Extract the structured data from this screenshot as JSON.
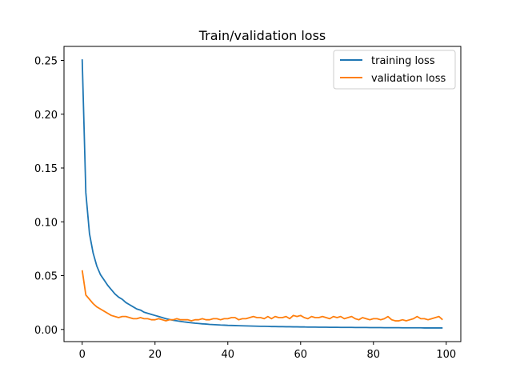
{
  "chart_data": {
    "type": "line",
    "title": "Train/validation loss",
    "xlabel": "",
    "ylabel": "",
    "xlim": [
      -5,
      104
    ],
    "ylim": [
      -0.0113,
      0.263
    ],
    "xticks": [
      0,
      20,
      40,
      60,
      80,
      100
    ],
    "xtick_labels": [
      "0",
      "20",
      "40",
      "60",
      "80",
      "100"
    ],
    "yticks": [
      0.0,
      0.05,
      0.1,
      0.15,
      0.2,
      0.25
    ],
    "ytick_labels": [
      "0.00",
      "0.05",
      "0.10",
      "0.15",
      "0.20",
      "0.25"
    ],
    "grid": false,
    "legend_position": "top-right",
    "series": [
      {
        "name": "training loss",
        "color": "#1f77b4",
        "x": [
          0,
          1,
          2,
          3,
          4,
          5,
          6,
          7,
          8,
          9,
          10,
          11,
          12,
          13,
          14,
          15,
          16,
          17,
          18,
          19,
          20,
          21,
          22,
          23,
          24,
          25,
          26,
          27,
          28,
          29,
          30,
          31,
          32,
          33,
          34,
          35,
          36,
          37,
          38,
          39,
          40,
          41,
          42,
          43,
          44,
          45,
          46,
          47,
          48,
          49,
          50,
          51,
          52,
          53,
          54,
          55,
          56,
          57,
          58,
          59,
          60,
          61,
          62,
          63,
          64,
          65,
          66,
          67,
          68,
          69,
          70,
          71,
          72,
          73,
          74,
          75,
          76,
          77,
          78,
          79,
          80,
          81,
          82,
          83,
          84,
          85,
          86,
          87,
          88,
          89,
          90,
          91,
          92,
          93,
          94,
          95,
          96,
          97,
          98,
          99
        ],
        "y": [
          0.251,
          0.127,
          0.089,
          0.071,
          0.059,
          0.051,
          0.046,
          0.041,
          0.037,
          0.033,
          0.03,
          0.028,
          0.025,
          0.023,
          0.021,
          0.019,
          0.018,
          0.016,
          0.015,
          0.014,
          0.013,
          0.012,
          0.011,
          0.01,
          0.0092,
          0.0085,
          0.008,
          0.0075,
          0.007,
          0.0066,
          0.0062,
          0.0058,
          0.0055,
          0.0052,
          0.005,
          0.0047,
          0.0045,
          0.0043,
          0.0041,
          0.004,
          0.0038,
          0.0037,
          0.0036,
          0.0035,
          0.0034,
          0.0033,
          0.0032,
          0.0031,
          0.003,
          0.0029,
          0.0029,
          0.0028,
          0.0027,
          0.0027,
          0.0026,
          0.0026,
          0.0025,
          0.0025,
          0.0024,
          0.0024,
          0.0023,
          0.0023,
          0.0022,
          0.0022,
          0.0022,
          0.0021,
          0.0021,
          0.0021,
          0.002,
          0.002,
          0.002,
          0.0019,
          0.0019,
          0.0019,
          0.0019,
          0.0018,
          0.0018,
          0.0018,
          0.0018,
          0.0017,
          0.0017,
          0.0017,
          0.0017,
          0.0016,
          0.0016,
          0.0016,
          0.0016,
          0.0016,
          0.0015,
          0.0015,
          0.0015,
          0.0015,
          0.0015,
          0.0015,
          0.0014,
          0.0014,
          0.0014,
          0.0014,
          0.0014,
          0.0014
        ]
      },
      {
        "name": "validation loss",
        "color": "#ff7f0e",
        "x": [
          0,
          1,
          2,
          3,
          4,
          5,
          6,
          7,
          8,
          9,
          10,
          11,
          12,
          13,
          14,
          15,
          16,
          17,
          18,
          19,
          20,
          21,
          22,
          23,
          24,
          25,
          26,
          27,
          28,
          29,
          30,
          31,
          32,
          33,
          34,
          35,
          36,
          37,
          38,
          39,
          40,
          41,
          42,
          43,
          44,
          45,
          46,
          47,
          48,
          49,
          50,
          51,
          52,
          53,
          54,
          55,
          56,
          57,
          58,
          59,
          60,
          61,
          62,
          63,
          64,
          65,
          66,
          67,
          68,
          69,
          70,
          71,
          72,
          73,
          74,
          75,
          76,
          77,
          78,
          79,
          80,
          81,
          82,
          83,
          84,
          85,
          86,
          87,
          88,
          89,
          90,
          91,
          92,
          93,
          94,
          95,
          96,
          97,
          98,
          99
        ],
        "y": [
          0.055,
          0.032,
          0.028,
          0.024,
          0.021,
          0.019,
          0.017,
          0.015,
          0.013,
          0.012,
          0.011,
          0.012,
          0.012,
          0.011,
          0.01,
          0.01,
          0.011,
          0.01,
          0.01,
          0.009,
          0.009,
          0.01,
          0.009,
          0.008,
          0.009,
          0.009,
          0.01,
          0.009,
          0.009,
          0.009,
          0.008,
          0.009,
          0.009,
          0.01,
          0.009,
          0.009,
          0.01,
          0.01,
          0.009,
          0.01,
          0.01,
          0.011,
          0.011,
          0.009,
          0.01,
          0.01,
          0.011,
          0.012,
          0.011,
          0.011,
          0.01,
          0.012,
          0.01,
          0.012,
          0.011,
          0.011,
          0.012,
          0.01,
          0.013,
          0.012,
          0.013,
          0.011,
          0.01,
          0.012,
          0.011,
          0.011,
          0.012,
          0.011,
          0.01,
          0.012,
          0.011,
          0.012,
          0.01,
          0.011,
          0.012,
          0.01,
          0.009,
          0.011,
          0.01,
          0.009,
          0.01,
          0.01,
          0.009,
          0.01,
          0.012,
          0.009,
          0.008,
          0.008,
          0.009,
          0.008,
          0.009,
          0.01,
          0.012,
          0.01,
          0.01,
          0.009,
          0.01,
          0.011,
          0.012,
          0.009
        ]
      }
    ]
  }
}
